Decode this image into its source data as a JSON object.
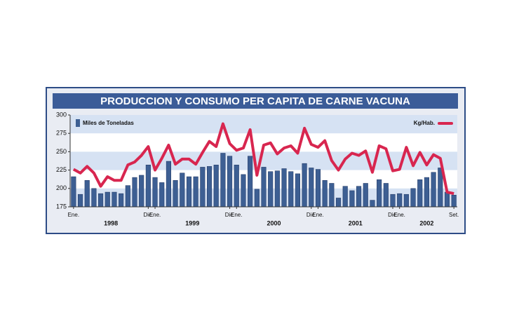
{
  "chart_data": {
    "type": "combo",
    "title": "PRODUCCION Y CONSUMO PER CAPITA DE CARNE VACUNA",
    "categories": [
      "Ene.",
      null,
      null,
      null,
      null,
      null,
      null,
      null,
      null,
      null,
      null,
      "Dic.",
      "Ene.",
      null,
      null,
      null,
      null,
      null,
      null,
      null,
      null,
      null,
      null,
      "Dic.",
      "Ene.",
      null,
      null,
      null,
      null,
      null,
      null,
      null,
      null,
      null,
      null,
      "Dic.",
      "Ene.",
      null,
      null,
      null,
      null,
      null,
      null,
      null,
      null,
      null,
      null,
      "Dic.",
      "Ene.",
      null,
      null,
      null,
      null,
      null,
      null,
      null,
      "Set."
    ],
    "years": [
      "1998",
      "1999",
      "2000",
      "2001",
      "2002"
    ],
    "series": [
      {
        "name": "Miles de Toneladas",
        "type": "bar",
        "color": "#3d5f93",
        "values": [
          216,
          192,
          211,
          200,
          193,
          195,
          195,
          193,
          204,
          215,
          218,
          232,
          215,
          208,
          237,
          211,
          221,
          216,
          216,
          229,
          230,
          232,
          248,
          244,
          232,
          219,
          244,
          199,
          229,
          223,
          224,
          227,
          223,
          220,
          234,
          228,
          226,
          211,
          207,
          187,
          203,
          197,
          203,
          207,
          184,
          212,
          207,
          192,
          193,
          192,
          200,
          212,
          215,
          222,
          228,
          195,
          191
        ]
      },
      {
        "name": "Kg/Hab.",
        "type": "line",
        "color": "#d8264f",
        "values": [
          226,
          221,
          230,
          221,
          203,
          216,
          211,
          211,
          232,
          236,
          245,
          257,
          225,
          241,
          259,
          233,
          240,
          240,
          233,
          249,
          264,
          257,
          288,
          261,
          252,
          255,
          280,
          218,
          259,
          262,
          247,
          255,
          258,
          248,
          282,
          260,
          256,
          265,
          238,
          225,
          240,
          248,
          245,
          251,
          222,
          258,
          254,
          224,
          226,
          256,
          231,
          249,
          232,
          246,
          241,
          195,
          193
        ]
      }
    ],
    "ylim": [
      175,
      300
    ],
    "yticks": [
      175,
      200,
      225,
      250,
      275,
      300
    ],
    "bands": true
  }
}
